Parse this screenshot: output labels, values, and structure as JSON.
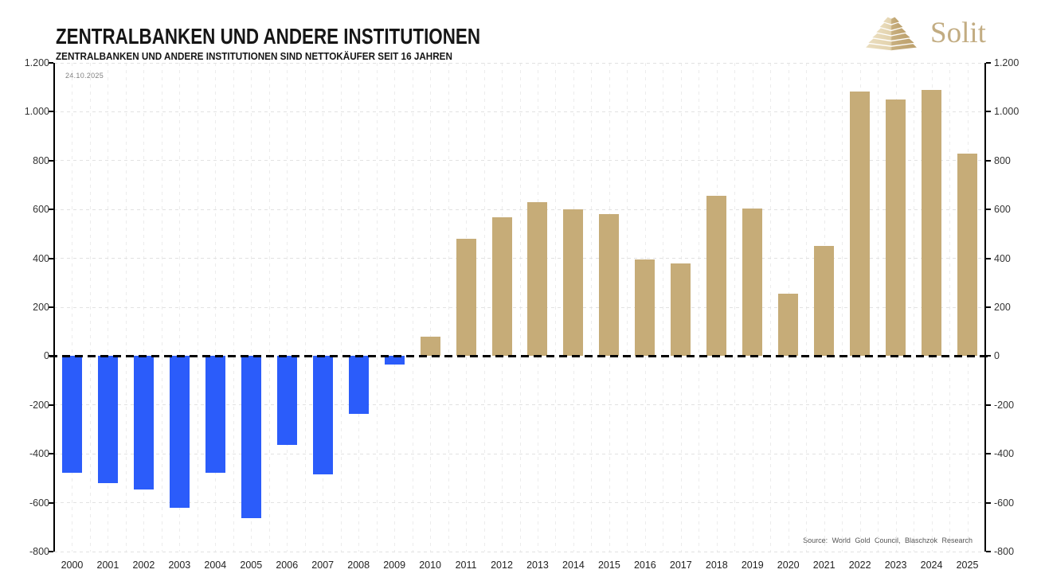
{
  "header": {
    "title": "ZENTRALBANKEN UND ANDERE INSTITUTIONEN",
    "subtitle": "ZENTRALBANKEN UND ANDERE INSTITUTIONEN SIND NETTOKÄUFER SEIT 16 JAHREN"
  },
  "logo": {
    "text": "Solit",
    "icon": "pyramid-icon"
  },
  "annotations": {
    "date": "24.10.2025",
    "source": "Source: World Gold Council, Blaschzok Research"
  },
  "colors": {
    "bar_positive": "#C6AC78",
    "bar_negative": "#2B5CFA",
    "logo_gold": "#C2AC82",
    "grid": "#E2E2E2",
    "axis": "#000000"
  },
  "chart_data": {
    "type": "bar",
    "title": "ZENTRALBANKEN UND ANDERE INSTITUTIONEN",
    "subtitle": "ZENTRALBANKEN UND ANDERE INSTITUTIONEN SIND NETTOKÄUFER SEIT 16 JAHREN",
    "categories": [
      "2000",
      "2001",
      "2002",
      "2003",
      "2004",
      "2005",
      "2006",
      "2007",
      "2008",
      "2009",
      "2010",
      "2011",
      "2012",
      "2013",
      "2014",
      "2015",
      "2016",
      "2017",
      "2018",
      "2019",
      "2020",
      "2021",
      "2022",
      "2023",
      "2024",
      "2025"
    ],
    "values": [
      -479,
      -520,
      -545,
      -620,
      -479,
      -663,
      -365,
      -484,
      -235,
      -34,
      79,
      481,
      569,
      629,
      601,
      580,
      395,
      379,
      656,
      605,
      255,
      450,
      1082,
      1051,
      1089,
      830
    ],
    "positive_color": "#C6AC78",
    "negative_color": "#2B5CFA",
    "ylim": [
      -800,
      1200
    ],
    "ytick_values": [
      1200,
      1000,
      800,
      600,
      400,
      200,
      0,
      -200,
      -400,
      -600,
      -800
    ],
    "ytick_labels": [
      "1.200",
      "1.000",
      "800",
      "600",
      "400",
      "200",
      "0",
      "-200",
      "-400",
      "-600",
      "-800"
    ],
    "grid": true,
    "legend_position": "none",
    "zero_line": {
      "style": "dashed",
      "color": "#000000"
    },
    "axes": "both-sides"
  }
}
